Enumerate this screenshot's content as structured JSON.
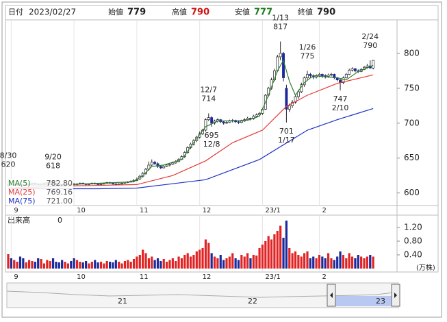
{
  "header": {
    "date_label": "日付",
    "date": "2023/02/27",
    "open_label": "始値",
    "open": 779,
    "high_label": "高値",
    "high": 790,
    "low_label": "安値",
    "low": 777,
    "close_label": "終値",
    "close": 790
  },
  "chart_data": {
    "type": "candlestick",
    "ylim": [
      582,
      847
    ],
    "yticks": [
      600,
      650,
      700,
      750,
      800
    ],
    "xticks": [
      {
        "value": 1,
        "label": "9"
      },
      {
        "value": 22,
        "label": "10"
      },
      {
        "value": 43,
        "label": "11"
      },
      {
        "value": 64,
        "label": "12"
      },
      {
        "value": 85,
        "label": "23/1"
      },
      {
        "value": 104,
        "label": "2"
      }
    ],
    "up_color": "#ffffff",
    "down_color": "#1c2a9c",
    "ohlc": [
      [
        611,
        620,
        609,
        612
      ],
      [
        612,
        613,
        610,
        611
      ],
      [
        611,
        613,
        610,
        612
      ],
      [
        612,
        614,
        611,
        613
      ],
      [
        613,
        614,
        611,
        612
      ],
      [
        612,
        613,
        610,
        611
      ],
      [
        611,
        613,
        610,
        612
      ],
      [
        612,
        614,
        611,
        613
      ],
      [
        613,
        615,
        612,
        614
      ],
      [
        614,
        615,
        612,
        613
      ],
      [
        613,
        614,
        611,
        612
      ],
      [
        612,
        614,
        611,
        613
      ],
      [
        613,
        615,
        612,
        614
      ],
      [
        614,
        616,
        613,
        615
      ],
      [
        615,
        617,
        614,
        616
      ],
      [
        616,
        618,
        613,
        614
      ],
      [
        614,
        615,
        612,
        613
      ],
      [
        613,
        614,
        611,
        612
      ],
      [
        612,
        613,
        610,
        611
      ],
      [
        611,
        613,
        610,
        612
      ],
      [
        612,
        614,
        611,
        613
      ],
      [
        613,
        614,
        611,
        612
      ],
      [
        613,
        614,
        611,
        612
      ],
      [
        612,
        614,
        611,
        613
      ],
      [
        613,
        615,
        612,
        614
      ],
      [
        614,
        615,
        612,
        613
      ],
      [
        613,
        614,
        611,
        612
      ],
      [
        612,
        614,
        611,
        613
      ],
      [
        613,
        615,
        612,
        614
      ],
      [
        614,
        615,
        612,
        613
      ],
      [
        613,
        614,
        611,
        612
      ],
      [
        612,
        614,
        611,
        613
      ],
      [
        613,
        615,
        612,
        614
      ],
      [
        614,
        616,
        613,
        615
      ],
      [
        615,
        616,
        613,
        614
      ],
      [
        614,
        615,
        612,
        613
      ],
      [
        613,
        614,
        611,
        612
      ],
      [
        612,
        614,
        611,
        613
      ],
      [
        613,
        615,
        612,
        614
      ],
      [
        614,
        616,
        613,
        615
      ],
      [
        615,
        617,
        614,
        616
      ],
      [
        616,
        618,
        615,
        617
      ],
      [
        617,
        620,
        616,
        618
      ],
      [
        618,
        622,
        617,
        620
      ],
      [
        620,
        626,
        619,
        624
      ],
      [
        624,
        630,
        622,
        628
      ],
      [
        628,
        636,
        626,
        634
      ],
      [
        634,
        645,
        632,
        640
      ],
      [
        640,
        648,
        638,
        644
      ],
      [
        644,
        646,
        640,
        642
      ],
      [
        642,
        644,
        636,
        638
      ],
      [
        638,
        640,
        634,
        636
      ],
      [
        636,
        640,
        635,
        638
      ],
      [
        638,
        642,
        637,
        640
      ],
      [
        640,
        643,
        638,
        641
      ],
      [
        641,
        645,
        640,
        643
      ],
      [
        643,
        647,
        642,
        645
      ],
      [
        645,
        650,
        644,
        648
      ],
      [
        648,
        654,
        647,
        652
      ],
      [
        652,
        660,
        650,
        658
      ],
      [
        658,
        667,
        656,
        665
      ],
      [
        665,
        672,
        663,
        670
      ],
      [
        670,
        677,
        668,
        675
      ],
      [
        675,
        682,
        673,
        680
      ],
      [
        680,
        688,
        678,
        685
      ],
      [
        685,
        692,
        683,
        690
      ],
      [
        690,
        707,
        688,
        705
      ],
      [
        705,
        714,
        703,
        708
      ],
      [
        708,
        710,
        695,
        700
      ],
      [
        700,
        705,
        698,
        703
      ],
      [
        703,
        707,
        701,
        705
      ],
      [
        705,
        706,
        700,
        702
      ],
      [
        702,
        703,
        698,
        700
      ],
      [
        700,
        703,
        699,
        701
      ],
      [
        701,
        705,
        700,
        703
      ],
      [
        703,
        706,
        701,
        704
      ],
      [
        704,
        705,
        700,
        702
      ],
      [
        702,
        703,
        699,
        701
      ],
      [
        701,
        705,
        700,
        703
      ],
      [
        703,
        707,
        702,
        705
      ],
      [
        705,
        709,
        704,
        707
      ],
      [
        707,
        708,
        704,
        706
      ],
      [
        706,
        712,
        705,
        710
      ],
      [
        710,
        714,
        708,
        712
      ],
      [
        712,
        716,
        710,
        714
      ],
      [
        714,
        722,
        712,
        720
      ],
      [
        720,
        742,
        719,
        740
      ],
      [
        740,
        752,
        738,
        750
      ],
      [
        750,
        765,
        748,
        762
      ],
      [
        762,
        778,
        760,
        775
      ],
      [
        775,
        798,
        773,
        795
      ],
      [
        795,
        817,
        790,
        800
      ],
      [
        800,
        802,
        760,
        765
      ],
      [
        750,
        755,
        701,
        720
      ],
      [
        720,
        728,
        716,
        725
      ],
      [
        725,
        733,
        722,
        730
      ],
      [
        730,
        740,
        728,
        738
      ],
      [
        738,
        748,
        735,
        745
      ],
      [
        745,
        758,
        743,
        755
      ],
      [
        755,
        767,
        752,
        765
      ],
      [
        765,
        775,
        762,
        770
      ],
      [
        770,
        772,
        765,
        768
      ],
      [
        768,
        770,
        763,
        766
      ],
      [
        766,
        770,
        764,
        768
      ],
      [
        768,
        772,
        766,
        770
      ],
      [
        770,
        771,
        765,
        768
      ],
      [
        768,
        770,
        764,
        767
      ],
      [
        767,
        771,
        765,
        769
      ],
      [
        769,
        772,
        767,
        770
      ],
      [
        770,
        771,
        763,
        765
      ],
      [
        765,
        766,
        760,
        762
      ],
      [
        762,
        763,
        747,
        758
      ],
      [
        758,
        767,
        756,
        765
      ],
      [
        765,
        772,
        764,
        770
      ],
      [
        770,
        778,
        769,
        776
      ],
      [
        776,
        780,
        774,
        778
      ],
      [
        778,
        779,
        773,
        775
      ],
      [
        775,
        777,
        772,
        774
      ],
      [
        774,
        779,
        773,
        777
      ],
      [
        777,
        782,
        776,
        780
      ],
      [
        780,
        785,
        778,
        782
      ],
      [
        782,
        790,
        778,
        779
      ],
      [
        779,
        790,
        777,
        790
      ]
    ],
    "series": [
      {
        "name": "MA(5)",
        "color": "#2e7d32",
        "legend_value": "782.80",
        "x": [
          0,
          20,
          42,
          45,
          48,
          52,
          58,
          62,
          66,
          70,
          80,
          84,
          87,
          90,
          92,
          94,
          96,
          99,
          102,
          110,
          113,
          117,
          122
        ],
        "values": [
          611,
          612,
          616,
          625,
          638,
          640,
          648,
          672,
          695,
          703,
          704,
          710,
          740,
          775,
          790,
          760,
          740,
          758,
          768,
          765,
          762,
          774,
          782.8
        ]
      },
      {
        "name": "MA(25)",
        "color": "#e53935",
        "legend_value": "769.16",
        "x": [
          0,
          20,
          43,
          55,
          66,
          75,
          85,
          93,
          100,
          110,
          122
        ],
        "values": [
          607,
          610,
          612,
          625,
          646,
          672,
          690,
          724,
          740,
          757,
          769.16
        ]
      },
      {
        "name": "MA(75)",
        "color": "#1e2fc8",
        "legend_value": "721.00",
        "x": [
          0,
          30,
          43,
          66,
          84,
          100,
          110,
          122
        ],
        "values": [
          606,
          606,
          607,
          619,
          648,
          690,
          705,
          721
        ]
      }
    ],
    "annotations": [
      {
        "x": 0,
        "date": "8/30",
        "value": 620,
        "side": "above"
      },
      {
        "x": 15,
        "date": "9/20",
        "value": 618,
        "side": "above"
      },
      {
        "x": 67,
        "date": "12/7",
        "value": 714,
        "side": "above"
      },
      {
        "x": 68,
        "date": "12/8",
        "value": 695,
        "side": "below"
      },
      {
        "x": 91,
        "date": "1/13",
        "value": 817,
        "side": "above"
      },
      {
        "x": 93,
        "date": "1/17",
        "value": 701,
        "side": "below"
      },
      {
        "x": 100,
        "date": "1/26",
        "value": 775,
        "side": "above"
      },
      {
        "x": 111,
        "date": "2/10",
        "value": 747,
        "side": "below"
      },
      {
        "x": 121,
        "date": "2/24",
        "value": 790,
        "side": "above"
      }
    ],
    "volume": {
      "label": "出来高",
      "current": 0,
      "unit": "(万株)",
      "ylim": [
        0,
        1.48
      ],
      "yticks": [
        {
          "value": 1.2,
          "label": "1.20"
        },
        {
          "value": 0.8,
          "label": "0.80"
        },
        {
          "value": 0.4,
          "label": "0.40"
        }
      ],
      "up_color": "#e02424",
      "down_color": "#1c2a9c",
      "flat_color": "#999999",
      "values": [
        0.42,
        0.3,
        0.25,
        0.2,
        0.35,
        0.3,
        0.18,
        0.25,
        0.22,
        0.2,
        0.3,
        0.28,
        0.15,
        0.25,
        0.22,
        0.3,
        0.2,
        0.18,
        0.25,
        0.2,
        0.15,
        0.22,
        0.3,
        0.25,
        0.2,
        0.18,
        0.22,
        0.15,
        0.2,
        0.25,
        0.18,
        0.2,
        0.15,
        0.22,
        0.2,
        0.18,
        0.25,
        0.2,
        0.15,
        0.22,
        0.25,
        0.2,
        0.28,
        0.35,
        0.4,
        0.55,
        0.45,
        0.3,
        0.35,
        0.25,
        0.3,
        0.22,
        0.28,
        0.2,
        0.25,
        0.3,
        0.22,
        0.35,
        0.3,
        0.4,
        0.45,
        0.35,
        0.4,
        0.5,
        0.55,
        0.6,
        0.85,
        0.75,
        0.45,
        0.35,
        0.3,
        0.4,
        0.25,
        0.3,
        0.35,
        0.45,
        0.3,
        0.25,
        0.4,
        0.35,
        0.45,
        0.3,
        0.4,
        0.38,
        0.6,
        0.7,
        0.8,
        0.95,
        0.85,
        1.0,
        1.1,
        1.25,
        0.9,
        1.4,
        0.6,
        0.45,
        0.5,
        0.4,
        0.35,
        0.45,
        0.5,
        0.3,
        0.35,
        0.3,
        0.4,
        0.35,
        0.3,
        0.45,
        0.3,
        0.25,
        0.35,
        0.5,
        0.4,
        0.3,
        0.45,
        0.35,
        0.3,
        0.4,
        0.35,
        0.3,
        0.35,
        0.4,
        0.35
      ]
    }
  },
  "navigator": {
    "labels": [
      "21",
      "22",
      "23"
    ]
  }
}
